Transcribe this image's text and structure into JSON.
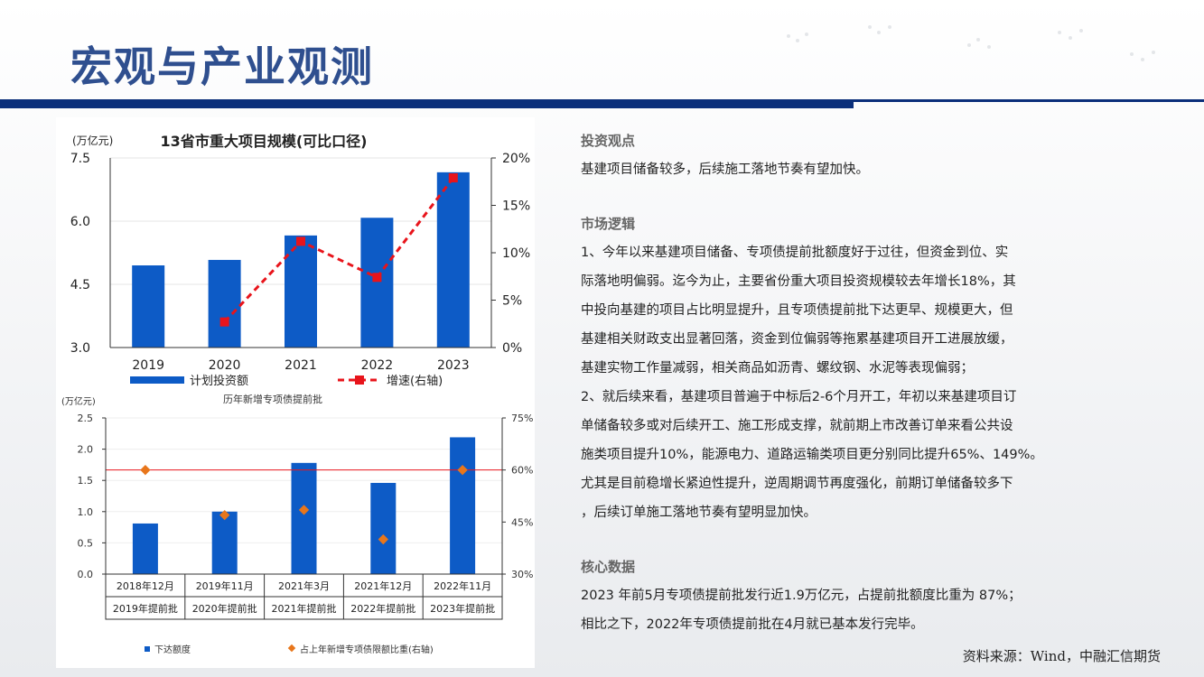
{
  "slide": {
    "title": "宏观与产业观测",
    "source": "资料来源：Wind，中融汇信期货"
  },
  "right_panel": {
    "sections": [
      {
        "heading": "投资观点",
        "lines": [
          "基建项目储备较多，后续施工落地节奏有望加快。"
        ]
      },
      {
        "heading": "市场逻辑",
        "lines": [
          "1、今年以来基建项目储备、专项债提前批额度好于过往，但资金到位、实",
          "际落地明偏弱。迄今为止，主要省份重大项目投资规模较去年增长18%，其",
          "中投向基建的项目占比明显提升，且专项债提前批下达更早、规模更大，但",
          "基建相关财政支出显著回落，资金到位偏弱等拖累基建项目开工进展放缓，",
          "基建实物工作量减弱，相关商品如沥青、螺纹钢、水泥等表现偏弱；",
          "2、就后续来看，基建项目普遍于中标后2-6个月开工，年初以来基建项目订",
          "单储备较多或对后续开工、施工形成支撑，就前期上市改善订单来看公共设",
          "施类项目提升10%，能源电力、道路运输类项目更分别同比提升65%、149%。",
          "尤其是目前稳增长紧迫性提升，逆周期调节再度强化，前期订单储备较多下",
          "，后续订单施工落地节奏有望明显加快。"
        ]
      },
      {
        "heading": "核心数据",
        "lines": [
          "2023 年前5月专项债提前批发行近1.9万亿元，占提前批额度比重为 87%；",
          "相比之下，2022年专项债提前批在4月就已基本发行完毕。"
        ]
      }
    ]
  },
  "chart_data": [
    {
      "type": "bar",
      "title": "13省市重大项目规模(可比口径)",
      "unit_label": "(万亿元)",
      "categories": [
        "2019",
        "2020",
        "2021",
        "2022",
        "2023"
      ],
      "series": [
        {
          "name": "计划投资额",
          "kind": "bar",
          "axis": "left",
          "values": [
            4.95,
            5.08,
            5.66,
            6.08,
            7.16
          ]
        },
        {
          "name": "增速(右轴)",
          "kind": "line",
          "axis": "right",
          "values": [
            null,
            2.7,
            11.2,
            7.4,
            17.9
          ]
        }
      ],
      "ylim": [
        3.0,
        7.5
      ],
      "yticks": [
        "3.0",
        "4.5",
        "6.0",
        "7.5"
      ],
      "y2lim": [
        0,
        20
      ],
      "y2ticks": [
        "0%",
        "5%",
        "10%",
        "15%",
        "20%"
      ],
      "legend": "bottom",
      "colors": {
        "bar": "#0d5bc6",
        "line": "#e8141b"
      }
    },
    {
      "type": "bar",
      "title": "历年新增专项债提前批",
      "unit_label": "(万亿元)",
      "categories": [
        "2018年12月",
        "2019年11月",
        "2021年3月",
        "2021年12月",
        "2022年11月"
      ],
      "category_sublabels": [
        "2019年提前批",
        "2020年提前批",
        "2021年提前批",
        "2022年提前批",
        "2023年提前批"
      ],
      "series": [
        {
          "name": "下达额度",
          "kind": "bar",
          "axis": "left",
          "values": [
            0.81,
            1.0,
            1.78,
            1.46,
            2.19
          ]
        },
        {
          "name": "占上年新增专项债限额比重(右轴)",
          "kind": "scatter",
          "axis": "right",
          "values": [
            60,
            47,
            48.5,
            40,
            60
          ]
        }
      ],
      "reference_line": {
        "axis": "right",
        "value": 60
      },
      "ylim": [
        0,
        2.5
      ],
      "yticks": [
        "0.0",
        "0.5",
        "1.0",
        "1.5",
        "2.0",
        "2.5"
      ],
      "y2lim": [
        30,
        75
      ],
      "y2ticks": [
        "30%",
        "45%",
        "60%",
        "75%"
      ],
      "legend": "bottom",
      "colors": {
        "bar": "#0d5bc6",
        "marker": "#e8761b",
        "reference": "#e8141b"
      }
    }
  ]
}
